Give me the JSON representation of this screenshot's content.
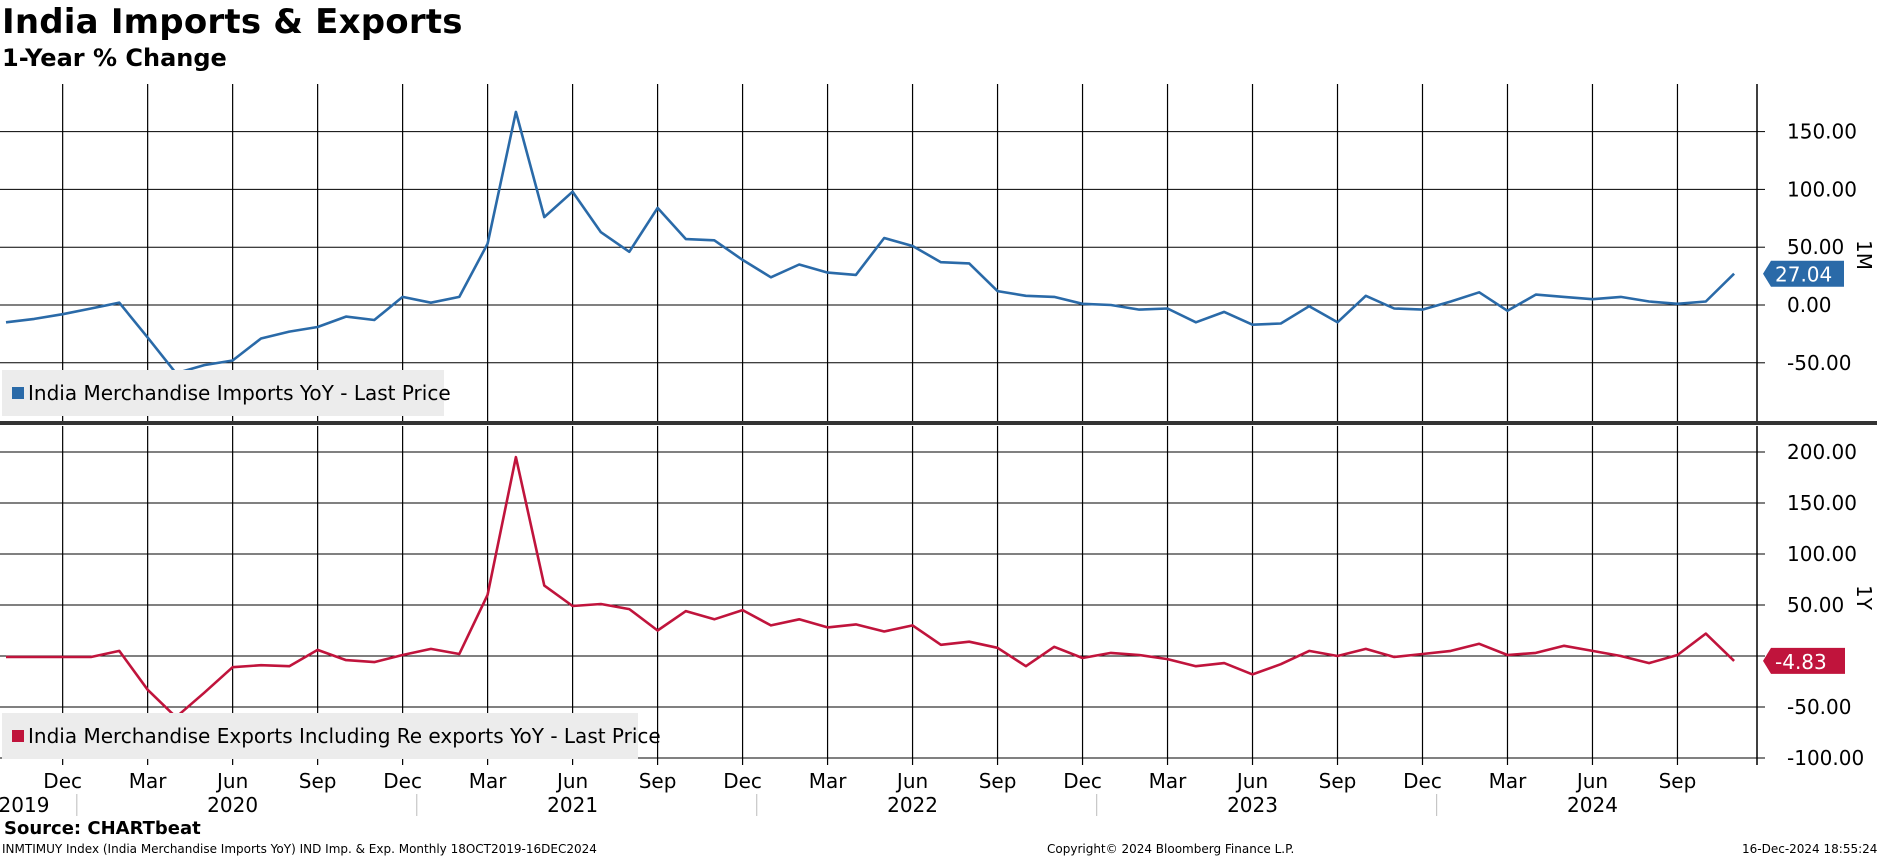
{
  "title": "India Imports & Exports",
  "subtitle": "1-Year % Change",
  "footer": {
    "source": "Source: CHARTbeat",
    "index_line": "INMTIMUY Index (India Merchandise Imports YoY) IND Imp. & Exp.  Monthly 18OCT2019-16DEC2024",
    "copyright": "Copyright© 2024 Bloomberg Finance L.P.",
    "timestamp": "16-Dec-2024 18:55:24"
  },
  "period_labels": {
    "top": "1M",
    "bottom": "1Y"
  },
  "colors": {
    "imports": "#2a6aa8",
    "exports": "#c0143c",
    "grid": "#000000"
  },
  "chart_data": [
    {
      "type": "line",
      "x": [
        "2019-10",
        "2019-11",
        "2019-12",
        "2020-01",
        "2020-02",
        "2020-03",
        "2020-04",
        "2020-05",
        "2020-06",
        "2020-07",
        "2020-08",
        "2020-09",
        "2020-10",
        "2020-11",
        "2020-12",
        "2021-01",
        "2021-02",
        "2021-03",
        "2021-04",
        "2021-05",
        "2021-06",
        "2021-07",
        "2021-08",
        "2021-09",
        "2021-10",
        "2021-11",
        "2021-12",
        "2022-01",
        "2022-02",
        "2022-03",
        "2022-04",
        "2022-05",
        "2022-06",
        "2022-07",
        "2022-08",
        "2022-09",
        "2022-10",
        "2022-11",
        "2022-12",
        "2023-01",
        "2023-02",
        "2023-03",
        "2023-04",
        "2023-05",
        "2023-06",
        "2023-07",
        "2023-08",
        "2023-09",
        "2023-10",
        "2023-11",
        "2023-12",
        "2024-01",
        "2024-02",
        "2024-03",
        "2024-04",
        "2024-05",
        "2024-06",
        "2024-07",
        "2024-08",
        "2024-09",
        "2024-10",
        "2024-11"
      ],
      "series": [
        {
          "name": "India Merchandise Imports YoY - Last Price",
          "values": [
            -15,
            -12,
            -8,
            -3,
            2,
            -28,
            -59,
            -52,
            -48,
            -29,
            -23,
            -19,
            -10,
            -13,
            7,
            2,
            7,
            53,
            167,
            76,
            98,
            63,
            46,
            84,
            57,
            56,
            39,
            24,
            35,
            28,
            26,
            58,
            51,
            37,
            36,
            12,
            8,
            7,
            1,
            0,
            -4,
            -3,
            -15,
            -6,
            -17,
            -16,
            -1,
            -15,
            8,
            -3,
            -4,
            3,
            11,
            -5,
            9,
            7,
            5,
            7,
            3,
            1,
            3,
            27.04
          ]
        }
      ],
      "last_value_label": "27.04",
      "xlim": [
        "2019-10",
        "2024-11"
      ],
      "ylim": [
        -80,
        190
      ],
      "yticks": [
        -50,
        0,
        50,
        100,
        150
      ],
      "ytick_labels": [
        "-50.00",
        "0.00",
        "50.00",
        "100.00",
        "150.00"
      ],
      "grid": true,
      "legend_position": "bottom-left"
    },
    {
      "type": "line",
      "x": [
        "2019-10",
        "2019-11",
        "2019-12",
        "2020-01",
        "2020-02",
        "2020-03",
        "2020-04",
        "2020-05",
        "2020-06",
        "2020-07",
        "2020-08",
        "2020-09",
        "2020-10",
        "2020-11",
        "2020-12",
        "2021-01",
        "2021-02",
        "2021-03",
        "2021-04",
        "2021-05",
        "2021-06",
        "2021-07",
        "2021-08",
        "2021-09",
        "2021-10",
        "2021-11",
        "2021-12",
        "2022-01",
        "2022-02",
        "2022-03",
        "2022-04",
        "2022-05",
        "2022-06",
        "2022-07",
        "2022-08",
        "2022-09",
        "2022-10",
        "2022-11",
        "2022-12",
        "2023-01",
        "2023-02",
        "2023-03",
        "2023-04",
        "2023-05",
        "2023-06",
        "2023-07",
        "2023-08",
        "2023-09",
        "2023-10",
        "2023-11",
        "2023-12",
        "2024-01",
        "2024-02",
        "2024-03",
        "2024-04",
        "2024-05",
        "2024-06",
        "2024-07",
        "2024-08",
        "2024-09",
        "2024-10",
        "2024-11"
      ],
      "series": [
        {
          "name": "India Merchandise Exports Including Re exports YoY - Last Price",
          "values": [
            -1,
            -1,
            -1,
            -1,
            5,
            -33,
            -60,
            -36,
            -11,
            -9,
            -10,
            6,
            -4,
            -6,
            1,
            7,
            2,
            60,
            195,
            69,
            49,
            51,
            46,
            25,
            44,
            36,
            45,
            30,
            36,
            28,
            31,
            24,
            30,
            11,
            14,
            8,
            -10,
            9,
            -2,
            3,
            1,
            -3,
            -10,
            -7,
            -18,
            -8,
            5,
            0,
            7,
            -1,
            2,
            5,
            12,
            1,
            3,
            10,
            5,
            0,
            -7,
            1,
            22,
            -4.83
          ]
        }
      ],
      "last_value_label": "-4.83",
      "xlim": [
        "2019-10",
        "2024-11"
      ],
      "ylim": [
        -110,
        210
      ],
      "yticks": [
        -100,
        -50,
        0,
        50,
        100,
        150,
        200
      ],
      "ytick_labels": [
        "-100.00",
        "-50.00",
        "",
        "50.00",
        "100.00",
        "150.00",
        "200.00"
      ],
      "grid": true,
      "legend_position": "bottom-left"
    }
  ],
  "x_axis": {
    "months": [
      {
        "date": "2019-12",
        "label": "Dec"
      },
      {
        "date": "2020-03",
        "label": "Mar"
      },
      {
        "date": "2020-06",
        "label": "Jun"
      },
      {
        "date": "2020-09",
        "label": "Sep"
      },
      {
        "date": "2020-12",
        "label": "Dec"
      },
      {
        "date": "2021-03",
        "label": "Mar"
      },
      {
        "date": "2021-06",
        "label": "Jun"
      },
      {
        "date": "2021-09",
        "label": "Sep"
      },
      {
        "date": "2021-12",
        "label": "Dec"
      },
      {
        "date": "2022-03",
        "label": "Mar"
      },
      {
        "date": "2022-06",
        "label": "Jun"
      },
      {
        "date": "2022-09",
        "label": "Sep"
      },
      {
        "date": "2022-12",
        "label": "Dec"
      },
      {
        "date": "2023-03",
        "label": "Mar"
      },
      {
        "date": "2023-06",
        "label": "Jun"
      },
      {
        "date": "2023-09",
        "label": "Sep"
      },
      {
        "date": "2023-12",
        "label": "Dec"
      },
      {
        "date": "2024-03",
        "label": "Mar"
      },
      {
        "date": "2024-06",
        "label": "Jun"
      },
      {
        "date": "2024-09",
        "label": "Sep"
      }
    ],
    "years": [
      {
        "date": "2019-10",
        "label": "2019"
      },
      {
        "date": "2020-06",
        "label": "2020"
      },
      {
        "date": "2021-06",
        "label": "2021"
      },
      {
        "date": "2022-06",
        "label": "2022"
      },
      {
        "date": "2023-06",
        "label": "2023"
      },
      {
        "date": "2024-06",
        "label": "2024"
      }
    ],
    "year_boundaries": [
      "2020-01",
      "2021-01",
      "2022-01",
      "2023-01",
      "2024-01"
    ]
  }
}
